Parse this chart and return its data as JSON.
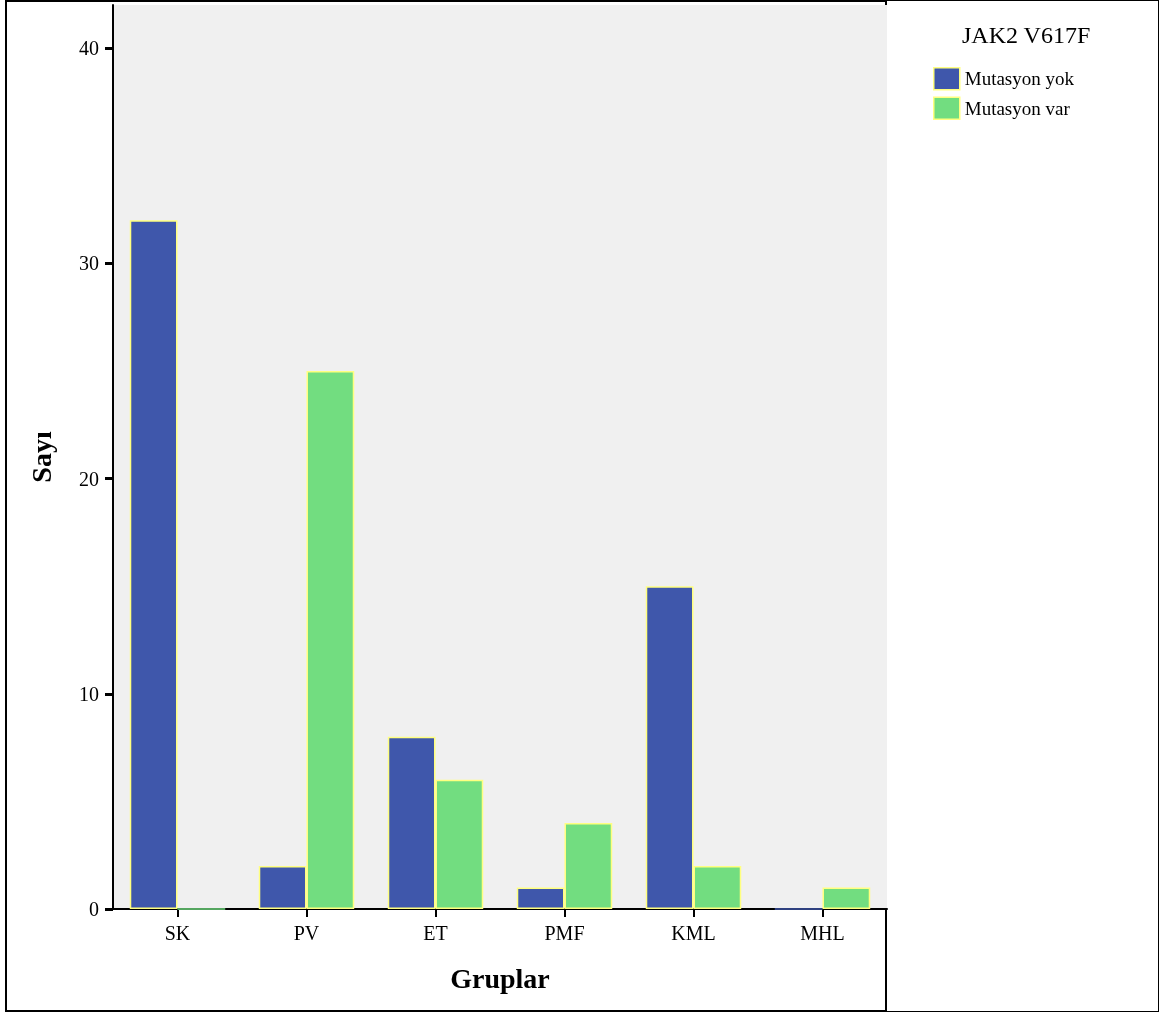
{
  "chart_data": {
    "type": "bar",
    "xlabel": "Gruplar",
    "ylabel": "Sayı",
    "legend_title": "JAK2 V617F",
    "categories": [
      "SK",
      "PV",
      "ET",
      "PMF",
      "KML",
      "MHL"
    ],
    "series": [
      {
        "name": "Mutasyon yok",
        "color": "#3f57ab",
        "values": [
          32,
          2,
          8,
          1,
          15,
          0
        ]
      },
      {
        "name": "Mutasyon var",
        "color": "#72dd80",
        "values": [
          0,
          25,
          6,
          4,
          2,
          1
        ]
      }
    ],
    "ylim": [
      0,
      42
    ],
    "yticks": [
      0,
      10,
      20,
      30,
      40
    ],
    "grid": false,
    "legend": "right"
  }
}
